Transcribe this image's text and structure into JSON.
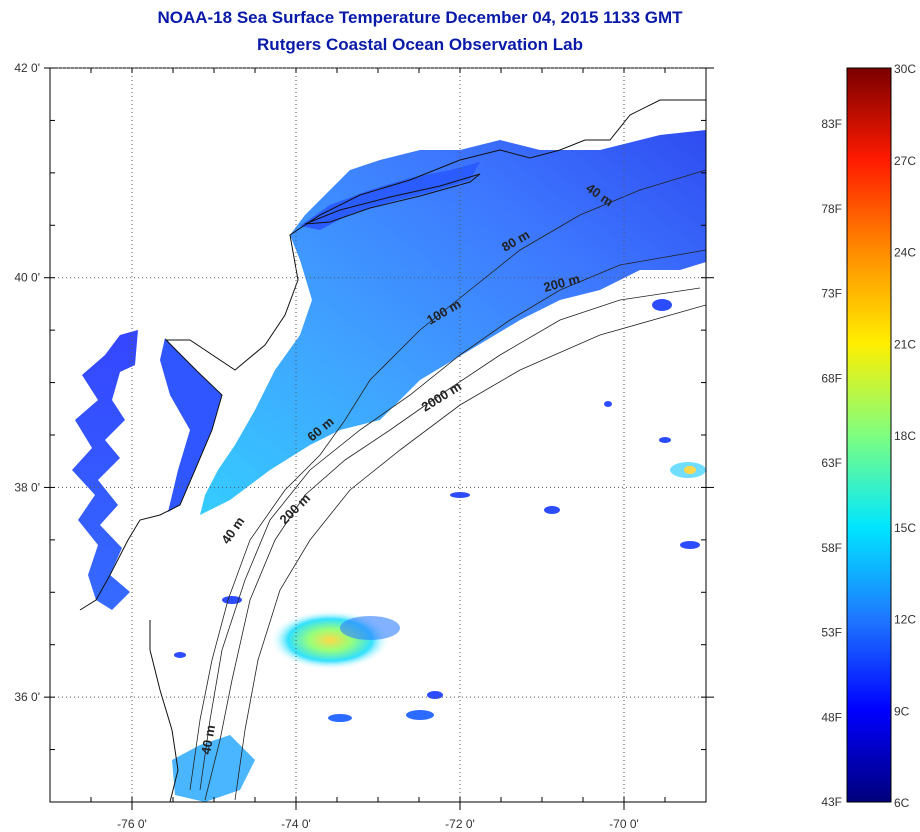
{
  "title": {
    "line1": "NOAA-18 Sea Surface Temperature December 04, 2015 1133 GMT",
    "line2": "Rutgers Coastal Ocean Observation Lab"
  },
  "map": {
    "lon_range": [
      -77.0,
      -69.0
    ],
    "lat_range": [
      35.0,
      42.0
    ],
    "gridlines": "dotted",
    "lon_ticks": [
      {
        "value": -76,
        "label": "-76 0'"
      },
      {
        "value": -74,
        "label": "-74 0'"
      },
      {
        "value": -72,
        "label": "-72 0'"
      },
      {
        "value": -70,
        "label": "-70 0'"
      }
    ],
    "lat_ticks": [
      {
        "value": 42,
        "label": "42 0'"
      },
      {
        "value": 40,
        "label": "40 0'"
      },
      {
        "value": 38,
        "label": "38 0'"
      },
      {
        "value": 36,
        "label": "36 0'"
      }
    ],
    "contour_labels": [
      {
        "text": "40 m"
      },
      {
        "text": "80 m"
      },
      {
        "text": "200 m"
      },
      {
        "text": "100 m"
      },
      {
        "text": "2000 m"
      },
      {
        "text": "60 m"
      },
      {
        "text": "40 m"
      },
      {
        "text": "200 m"
      },
      {
        "text": "40 m"
      }
    ]
  },
  "colorbar": {
    "celsius_range": [
      6,
      30
    ],
    "celsius_labels": [
      "30C",
      "27C",
      "24C",
      "21C",
      "18C",
      "15C",
      "12C",
      "9C",
      "6C"
    ],
    "fahrenheit_labels": [
      "83F",
      "78F",
      "73F",
      "68F",
      "63F",
      "58F",
      "53F",
      "48F",
      "43F"
    ],
    "colors": {
      "c30": "#7a0000",
      "c27": "#ff1a00",
      "c24": "#ff8c00",
      "c21": "#ffee00",
      "c18": "#7fff7f",
      "c15": "#00e6ff",
      "c12": "#1e78ff",
      "c9": "#0000ff",
      "c6": "#00007a"
    }
  }
}
